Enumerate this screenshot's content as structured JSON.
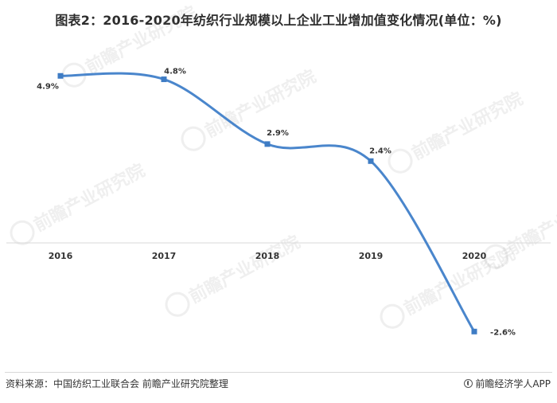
{
  "title": "图表2：2016-2020年纺织行业规模以上企业工业增加值变化情况(单位：%)",
  "source": "资料来源：中国纺织工业联合会 前瞻产业研究院整理",
  "brand": "前瞻经济学人APP",
  "watermark": "前瞻产业研究院",
  "colors": {
    "line": "#4a86cc",
    "marker": "#3e7cc4",
    "text": "#333333",
    "axis": "#d9d9d9"
  },
  "chart_data": {
    "type": "line",
    "categories": [
      "2016",
      "2017",
      "2018",
      "2019",
      "2020"
    ],
    "series": [
      {
        "name": "",
        "values": [
          4.9,
          4.8,
          2.9,
          2.4,
          -2.6
        ],
        "labels": [
          "4.9%",
          "4.8%",
          "2.9%",
          "2.4%",
          "-2.6%"
        ]
      }
    ],
    "smooth": true,
    "grid": false,
    "legend": "none"
  }
}
